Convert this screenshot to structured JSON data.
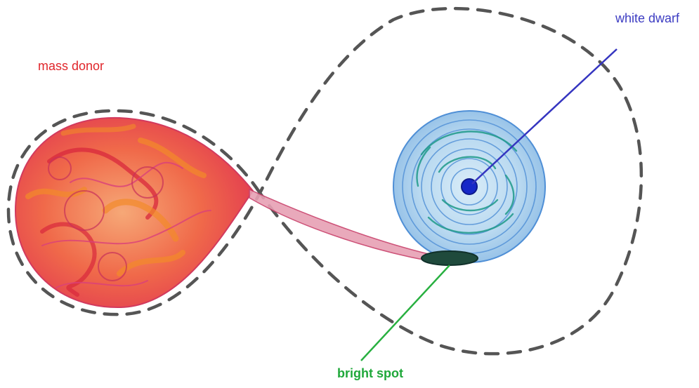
{
  "labels": {
    "mass_donor": "mass donor",
    "white_dwarf": "white dwarf",
    "bright_spot": "bright spot"
  },
  "colors": {
    "donor_label": "#e0262b",
    "white_dwarf_label": "#3c3cc2",
    "bright_spot_label": "#1fa83a",
    "white_dwarf_pointer": "#3535c0",
    "bright_spot_pointer": "#28b040",
    "donor_red": "#d8283c",
    "donor_orange": "#f28a2a",
    "donor_pink": "#d9407a",
    "disk_blue": "#4f8fd6",
    "disk_teal": "#1f9a8a",
    "white_dwarf_core": "#1628c8",
    "bright_spot_fill": "#1f4a3c",
    "roche_lobe_dash": "#555555",
    "stream": "#c8406a"
  }
}
